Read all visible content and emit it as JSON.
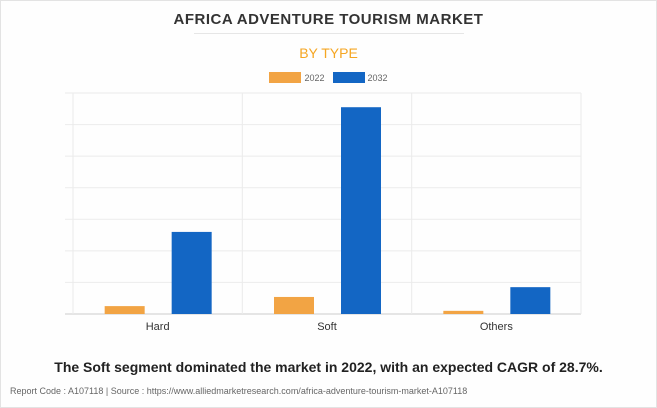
{
  "title": "AFRICA ADVENTURE TOURISM MARKET",
  "subtitle": "BY TYPE",
  "caption": "The Soft segment dominated the market in 2022, with an expected CAGR of 28.7%.",
  "source": "Report Code : A107118  |  Source : https://www.alliedmarketresearch.com/africa-adventure-tourism-market-A107118",
  "chart_data": {
    "type": "bar",
    "title": "AFRICA ADVENTURE TOURISM MARKET",
    "subtitle": "BY TYPE",
    "categories": [
      "Hard",
      "Soft",
      "Others"
    ],
    "series": [
      {
        "name": "2022",
        "color": "#f2a444",
        "values": [
          0.25,
          0.54,
          0.1
        ]
      },
      {
        "name": "2032",
        "color": "#1366c4",
        "values": [
          2.6,
          6.55,
          0.85
        ]
      }
    ],
    "xlabel": "",
    "ylabel": "",
    "ylim": [
      0,
      7
    ],
    "grid": true,
    "legend": "top-center"
  }
}
